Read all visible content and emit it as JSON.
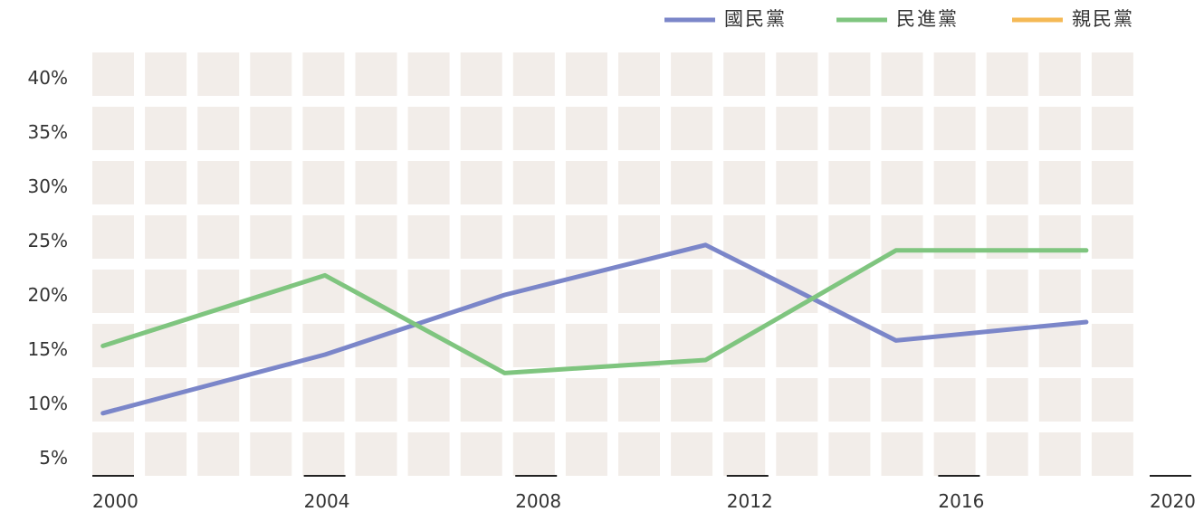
{
  "chart_data": {
    "type": "line",
    "x_ticks": [
      "2000",
      "2004",
      "2008",
      "2012",
      "2016",
      "2020"
    ],
    "y_ticks": [
      "5%",
      "10%",
      "15%",
      "20%",
      "25%",
      "30%",
      "35%",
      "40%"
    ],
    "xlim": [
      2000,
      2020
    ],
    "ylim": [
      2.5,
      42.5
    ],
    "grid": true,
    "legend_position": "top-right",
    "series": [
      {
        "name": "國民黨",
        "color": "#7b86c9",
        "points": [
          {
            "x": 2000.2,
            "y": 9.1
          },
          {
            "x": 2004.4,
            "y": 14.5
          },
          {
            "x": 2007.8,
            "y": 20.0
          },
          {
            "x": 2011.6,
            "y": 24.6
          },
          {
            "x": 2015.2,
            "y": 15.8
          },
          {
            "x": 2018.8,
            "y": 17.5
          }
        ]
      },
      {
        "name": "民進黨",
        "color": "#7fc57f",
        "points": [
          {
            "x": 2000.2,
            "y": 15.3
          },
          {
            "x": 2004.4,
            "y": 21.8
          },
          {
            "x": 2007.8,
            "y": 12.8
          },
          {
            "x": 2011.6,
            "y": 14.0
          },
          {
            "x": 2015.2,
            "y": 24.1
          },
          {
            "x": 2018.8,
            "y": 24.1
          }
        ]
      },
      {
        "name": "親民黨",
        "color": "#f5b955",
        "points": []
      }
    ]
  }
}
